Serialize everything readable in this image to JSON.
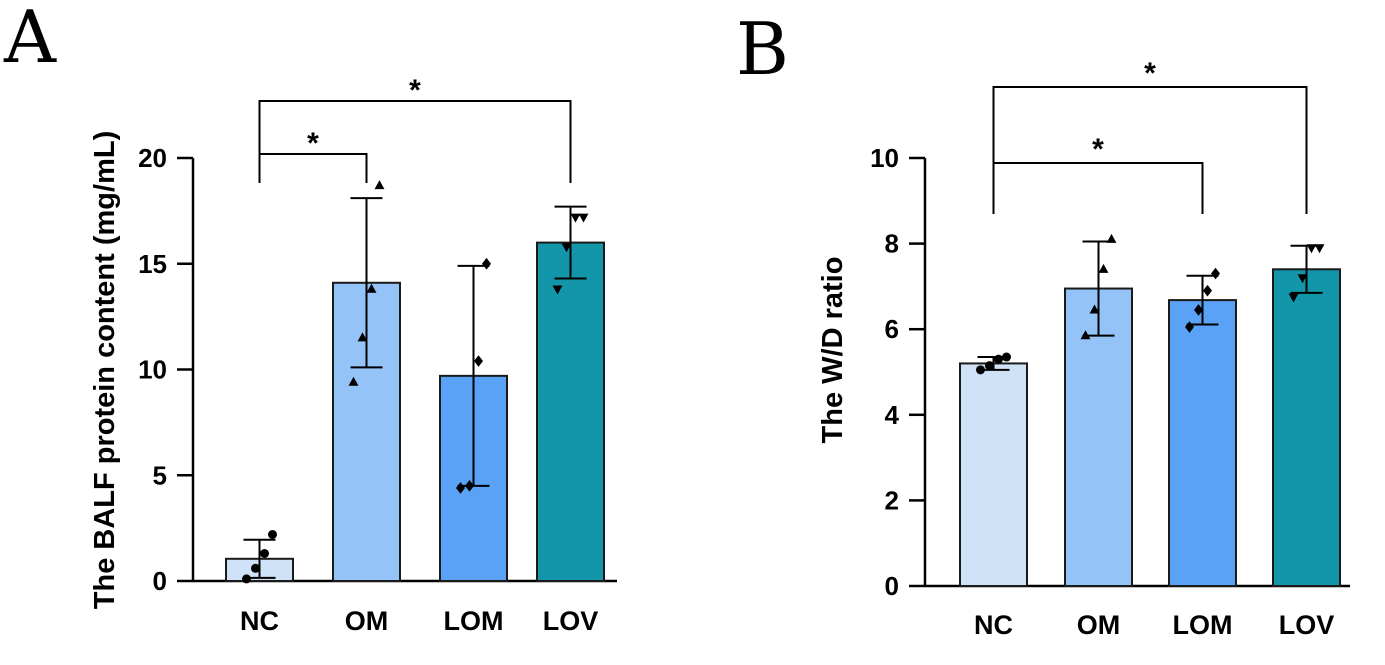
{
  "chart_data": [
    {
      "panel": "A",
      "type": "bar",
      "title": "",
      "xlabel": "",
      "ylabel": "The BALF protein content (mg/mL)",
      "ylim": [
        0,
        20
      ],
      "yticks": [
        "0",
        "5",
        "10",
        "15",
        "20"
      ],
      "categories": [
        "NC",
        "OM",
        "LOM",
        "LOV"
      ],
      "values": [
        1.05,
        14.1,
        9.7,
        16.0
      ],
      "sd": [
        0.9,
        4.0,
        5.2,
        1.7
      ],
      "colors": [
        "#cfe2f8",
        "#94c3f7",
        "#59a2f5",
        "#1396aa"
      ],
      "markers": [
        "circle",
        "triangle-up",
        "diamond",
        "triangle-down"
      ],
      "points": [
        [
          0.1,
          0.6,
          1.3,
          2.2
        ],
        [
          9.4,
          11.5,
          13.8,
          18.7
        ],
        [
          4.4,
          4.5,
          10.4,
          15.0
        ],
        [
          13.8,
          15.8,
          17.2,
          17.2
        ]
      ],
      "significance": [
        {
          "from": 0,
          "to": 1,
          "label": "*"
        },
        {
          "from": 0,
          "to": 3,
          "label": "*"
        }
      ]
    },
    {
      "panel": "B",
      "type": "bar",
      "title": "",
      "xlabel": "",
      "ylabel": "The W/D ratio",
      "ylim": [
        0,
        10
      ],
      "yticks": [
        "0",
        "2",
        "4",
        "6",
        "8",
        "10"
      ],
      "categories": [
        "NC",
        "OM",
        "LOM",
        "LOV"
      ],
      "values": [
        5.2,
        6.95,
        6.68,
        7.4
      ],
      "sd": [
        0.15,
        1.1,
        0.57,
        0.55
      ],
      "colors": [
        "#cfe2f8",
        "#94c3f7",
        "#59a2f5",
        "#1396aa"
      ],
      "markers": [
        "circle",
        "triangle-up",
        "diamond",
        "triangle-down"
      ],
      "points": [
        [
          5.05,
          5.15,
          5.3,
          5.35
        ],
        [
          5.85,
          6.45,
          7.4,
          8.1
        ],
        [
          6.05,
          6.45,
          6.9,
          7.3
        ],
        [
          6.75,
          7.2,
          7.9,
          7.9
        ]
      ],
      "significance": [
        {
          "from": 0,
          "to": 2,
          "label": "*"
        },
        {
          "from": 0,
          "to": 3,
          "label": "*"
        }
      ]
    }
  ]
}
